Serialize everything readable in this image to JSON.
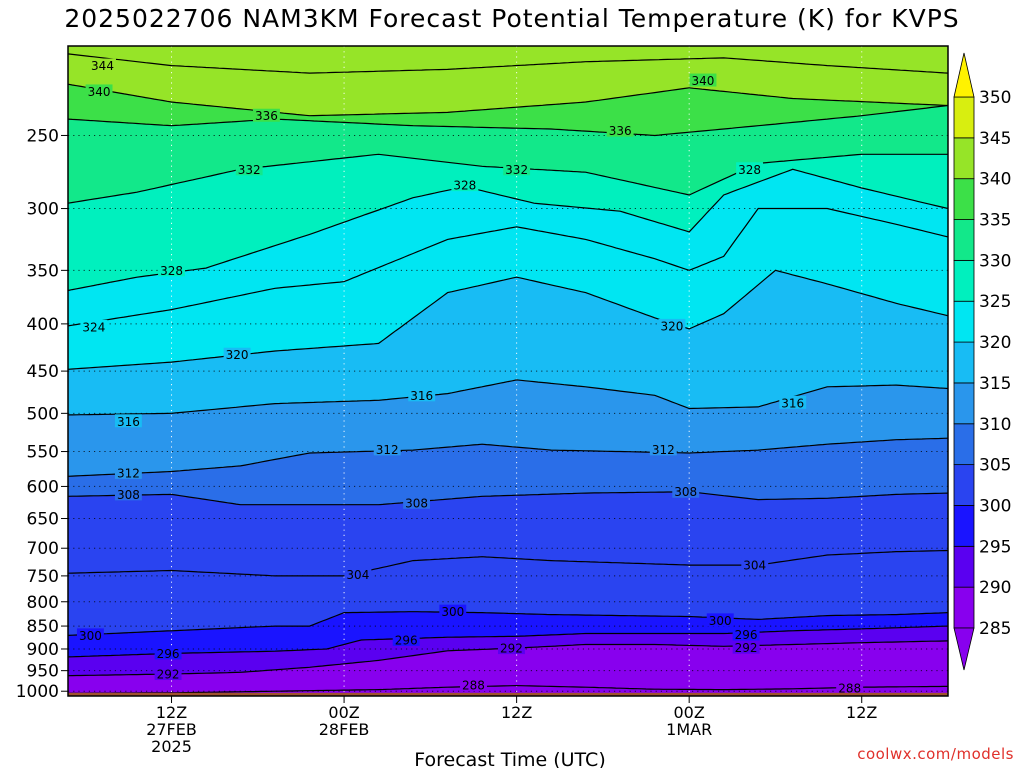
{
  "chart_data": {
    "type": "heatmap",
    "title": "2025022706 NAM3KM Forecast Potential Temperature (K) for KVPS",
    "xlabel": "Forecast Time (UTC)",
    "ylabel": "",
    "credit": "coolwx.com/models",
    "y_scale": "log",
    "ylim": [
      1012,
      200
    ],
    "y_ticks": [
      250,
      300,
      350,
      400,
      450,
      500,
      550,
      600,
      650,
      700,
      750,
      800,
      850,
      900,
      950,
      1000
    ],
    "xlim": [
      6,
      57
    ],
    "x_ticks": [
      {
        "hour": 12,
        "label1": "12Z",
        "label2": "27FEB",
        "label3": "2025"
      },
      {
        "hour": 22,
        "label1": "00Z",
        "label2": "28FEB",
        "label3": ""
      },
      {
        "hour": 32,
        "label1": "12Z",
        "label2": "",
        "label3": ""
      },
      {
        "hour": 42,
        "label1": "00Z",
        "label2": "1MAR",
        "label3": ""
      },
      {
        "hour": 52,
        "label1": "12Z",
        "label2": "",
        "label3": ""
      }
    ],
    "colorbar": {
      "levels": [
        285,
        290,
        295,
        300,
        305,
        310,
        315,
        320,
        325,
        330,
        335,
        340,
        345,
        350
      ],
      "colors": [
        "#8800ee",
        "#5a00f0",
        "#1a14ff",
        "#2a44f0",
        "#2a6ee8",
        "#2a96ec",
        "#18bcf4",
        "#00e6f2",
        "#00f0be",
        "#12e88a",
        "#3ce048",
        "#96e428",
        "#d8ee10",
        "#fff200"
      ]
    },
    "ground_color": "#a0522d",
    "series": [
      {
        "theta": 344,
        "labels": [
          [
            8,
            210
          ]
        ],
        "points": [
          [
            6,
            204
          ],
          [
            12,
            210
          ],
          [
            20,
            214
          ],
          [
            28,
            212
          ],
          [
            36,
            208
          ],
          [
            44,
            206
          ],
          [
            50,
            210
          ],
          [
            57,
            214
          ]
        ]
      },
      {
        "theta": 340,
        "labels": [
          [
            7.8,
            224
          ],
          [
            42.8,
            218
          ]
        ],
        "points": [
          [
            6,
            220
          ],
          [
            12,
            230
          ],
          [
            20,
            238
          ],
          [
            28,
            236
          ],
          [
            36,
            230
          ],
          [
            42,
            222
          ],
          [
            48,
            228
          ],
          [
            57,
            232
          ]
        ]
      },
      {
        "theta": 336,
        "labels": [
          [
            17.5,
            238
          ],
          [
            38,
            247
          ]
        ],
        "points": [
          [
            6,
            240
          ],
          [
            12,
            244
          ],
          [
            18,
            240
          ],
          [
            26,
            244
          ],
          [
            34,
            246
          ],
          [
            40,
            250
          ],
          [
            46,
            244
          ],
          [
            52,
            238
          ],
          [
            57,
            232
          ]
        ]
      },
      {
        "theta": 332,
        "labels": [
          [
            16.5,
            272
          ],
          [
            32,
            272
          ]
        ],
        "points": [
          [
            6,
            296
          ],
          [
            10,
            288
          ],
          [
            16,
            272
          ],
          [
            24,
            262
          ],
          [
            30,
            270
          ],
          [
            36,
            274
          ],
          [
            42,
            290
          ],
          [
            46,
            268
          ],
          [
            52,
            262
          ],
          [
            57,
            262
          ]
        ]
      },
      {
        "theta": 328,
        "labels": [
          [
            12,
            350
          ],
          [
            29,
            283
          ],
          [
            45.5,
            272
          ]
        ],
        "points": [
          [
            6,
            368
          ],
          [
            10,
            356
          ],
          [
            14,
            348
          ],
          [
            20,
            320
          ],
          [
            26,
            292
          ],
          [
            29,
            284
          ],
          [
            33,
            296
          ],
          [
            38,
            302
          ],
          [
            42,
            318
          ],
          [
            44,
            290
          ],
          [
            48,
            272
          ],
          [
            52,
            285
          ],
          [
            57,
            300
          ]
        ]
      },
      {
        "theta": 324,
        "labels": [
          [
            7.5,
            403
          ]
        ],
        "points": [
          [
            6,
            402
          ],
          [
            12,
            386
          ],
          [
            18,
            366
          ],
          [
            22,
            360
          ],
          [
            28,
            324
          ],
          [
            32,
            314
          ],
          [
            36,
            324
          ],
          [
            40,
            340
          ],
          [
            42,
            350
          ],
          [
            44,
            338
          ],
          [
            46,
            300
          ],
          [
            50,
            300
          ],
          [
            54,
            312
          ],
          [
            57,
            322
          ]
        ]
      },
      {
        "theta": 320,
        "labels": [
          [
            15.8,
            432
          ],
          [
            41,
            402
          ]
        ],
        "points": [
          [
            6,
            448
          ],
          [
            12,
            440
          ],
          [
            18,
            428
          ],
          [
            24,
            420
          ],
          [
            28,
            370
          ],
          [
            32,
            356
          ],
          [
            36,
            370
          ],
          [
            40,
            394
          ],
          [
            42,
            405
          ],
          [
            44,
            390
          ],
          [
            47,
            350
          ],
          [
            50,
            362
          ],
          [
            54,
            380
          ],
          [
            57,
            392
          ]
        ]
      },
      {
        "theta": 316,
        "labels": [
          [
            9.5,
            510
          ],
          [
            26.5,
            478
          ],
          [
            48,
            487
          ]
        ],
        "points": [
          [
            6,
            502
          ],
          [
            12,
            500
          ],
          [
            18,
            488
          ],
          [
            24,
            484
          ],
          [
            28,
            476
          ],
          [
            32,
            460
          ],
          [
            36,
            468
          ],
          [
            40,
            478
          ],
          [
            42,
            494
          ],
          [
            46,
            492
          ],
          [
            50,
            468
          ],
          [
            54,
            466
          ],
          [
            57,
            470
          ]
        ]
      },
      {
        "theta": 312,
        "labels": [
          [
            9.5,
            580
          ],
          [
            24.5,
            547
          ],
          [
            40.5,
            547
          ]
        ],
        "points": [
          [
            6,
            585
          ],
          [
            12,
            578
          ],
          [
            16,
            570
          ],
          [
            20,
            552
          ],
          [
            26,
            548
          ],
          [
            30,
            540
          ],
          [
            34,
            548
          ],
          [
            38,
            550
          ],
          [
            42,
            552
          ],
          [
            46,
            548
          ],
          [
            50,
            540
          ],
          [
            54,
            534
          ],
          [
            57,
            532
          ]
        ]
      },
      {
        "theta": 308,
        "labels": [
          [
            9.5,
            612
          ],
          [
            26.2,
            625
          ],
          [
            41.8,
            608
          ]
        ],
        "points": [
          [
            6,
            615
          ],
          [
            12,
            612
          ],
          [
            16,
            628
          ],
          [
            20,
            628
          ],
          [
            24,
            628
          ],
          [
            30,
            615
          ],
          [
            36,
            610
          ],
          [
            42,
            608
          ],
          [
            46,
            620
          ],
          [
            50,
            618
          ],
          [
            54,
            612
          ],
          [
            57,
            610
          ]
        ]
      },
      {
        "theta": 304,
        "labels": [
          [
            22.8,
            747
          ],
          [
            45.8,
            730
          ]
        ],
        "points": [
          [
            6,
            745
          ],
          [
            12,
            740
          ],
          [
            18,
            750
          ],
          [
            22,
            750
          ],
          [
            26,
            722
          ],
          [
            30,
            715
          ],
          [
            34,
            722
          ],
          [
            38,
            726
          ],
          [
            42,
            730
          ],
          [
            46,
            730
          ],
          [
            50,
            712
          ],
          [
            54,
            706
          ],
          [
            57,
            704
          ]
        ]
      },
      {
        "theta": 300,
        "labels": [
          [
            7.3,
            870
          ],
          [
            28.3,
            820
          ],
          [
            43.8,
            838
          ]
        ],
        "points": [
          [
            6,
            870
          ],
          [
            12,
            860
          ],
          [
            18,
            850
          ],
          [
            20,
            850
          ],
          [
            22,
            822
          ],
          [
            26,
            820
          ],
          [
            30,
            822
          ],
          [
            34,
            826
          ],
          [
            38,
            828
          ],
          [
            42,
            830
          ],
          [
            46,
            836
          ],
          [
            50,
            828
          ],
          [
            54,
            826
          ],
          [
            57,
            822
          ]
        ]
      },
      {
        "theta": 296,
        "labels": [
          [
            11.8,
            910
          ],
          [
            25.6,
            880
          ],
          [
            45.3,
            868
          ]
        ],
        "points": [
          [
            6,
            918
          ],
          [
            12,
            910
          ],
          [
            18,
            905
          ],
          [
            21,
            900
          ],
          [
            23,
            880
          ],
          [
            28,
            874
          ],
          [
            32,
            872
          ],
          [
            36,
            866
          ],
          [
            40,
            866
          ],
          [
            44,
            866
          ],
          [
            48,
            860
          ],
          [
            52,
            856
          ],
          [
            57,
            850
          ]
        ]
      },
      {
        "theta": 292,
        "labels": [
          [
            11.8,
            958
          ],
          [
            31.7,
            898
          ],
          [
            45.3,
            897
          ]
        ],
        "points": [
          [
            6,
            962
          ],
          [
            12,
            958
          ],
          [
            16,
            954
          ],
          [
            20,
            942
          ],
          [
            24,
            926
          ],
          [
            28,
            904
          ],
          [
            32,
            898
          ],
          [
            36,
            890
          ],
          [
            40,
            890
          ],
          [
            44,
            894
          ],
          [
            48,
            890
          ],
          [
            52,
            886
          ],
          [
            57,
            882
          ]
        ]
      },
      {
        "theta": 288,
        "labels": [
          [
            29.5,
            985
          ],
          [
            51.3,
            992
          ]
        ],
        "points": [
          [
            6,
            1005
          ],
          [
            12,
            1004
          ],
          [
            18,
            1000
          ],
          [
            24,
            996
          ],
          [
            28,
            990
          ],
          [
            32,
            986
          ],
          [
            36,
            990
          ],
          [
            40,
            995
          ],
          [
            44,
            996
          ],
          [
            48,
            994
          ],
          [
            52,
            990
          ],
          [
            57,
            988
          ]
        ]
      }
    ]
  }
}
